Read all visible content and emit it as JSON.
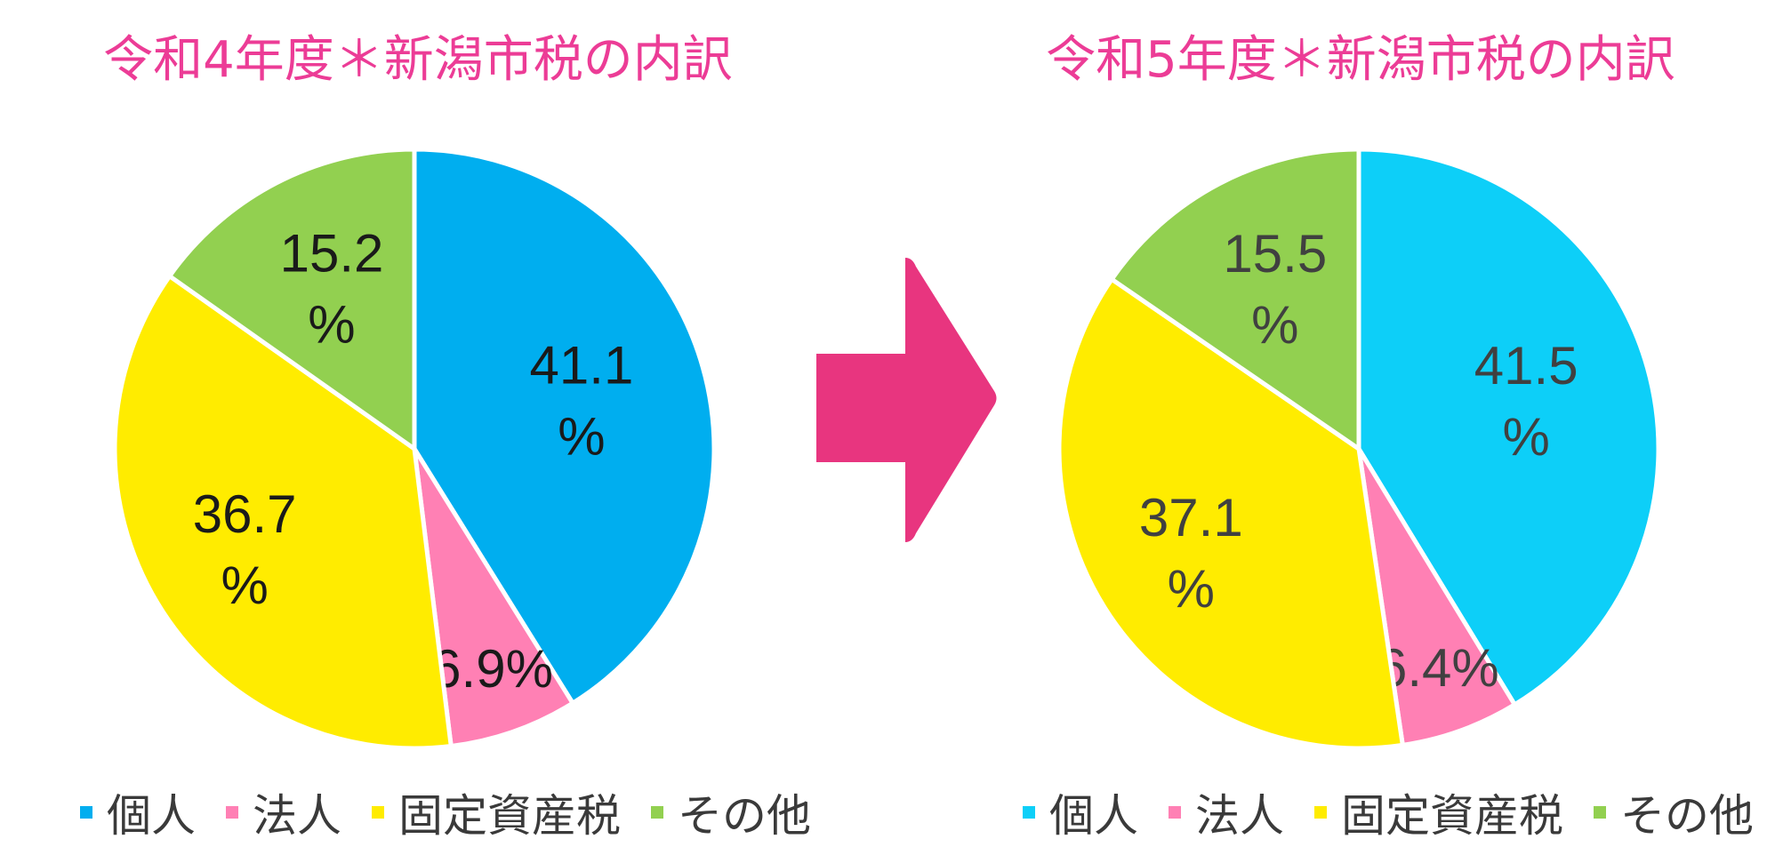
{
  "chart_data": [
    {
      "type": "pie",
      "title": "令和4年度＊新潟市税の内訳",
      "categories": [
        "個人",
        "法人",
        "固定資産税",
        "その他"
      ],
      "values": [
        41.1,
        6.9,
        36.7,
        15.2
      ],
      "labels": [
        [
          "41.1",
          "%"
        ],
        [
          "6.9%"
        ],
        [
          "36.7",
          "%"
        ],
        [
          "15.2",
          "%"
        ]
      ],
      "colors": [
        "#00aeef",
        "#ff80b4",
        "#ffec00",
        "#92d050"
      ],
      "label_color": "#1a1a1a",
      "legend": "bottom"
    },
    {
      "type": "pie",
      "title": "令和5年度＊新潟市税の内訳",
      "categories": [
        "個人",
        "法人",
        "固定資産税",
        "その他"
      ],
      "values": [
        41.5,
        6.4,
        37.1,
        15.5
      ],
      "labels": [
        [
          "41.5",
          "%"
        ],
        [
          "6.4%"
        ],
        [
          "37.1",
          "%"
        ],
        [
          "15.5",
          "%"
        ]
      ],
      "colors": [
        "#0dcff8",
        "#ff80b4",
        "#ffec00",
        "#92d050"
      ],
      "label_color": "#404040",
      "legend": "bottom"
    }
  ],
  "arrow": {
    "color": "#e8357f",
    "icon": "right-arrow-icon"
  }
}
